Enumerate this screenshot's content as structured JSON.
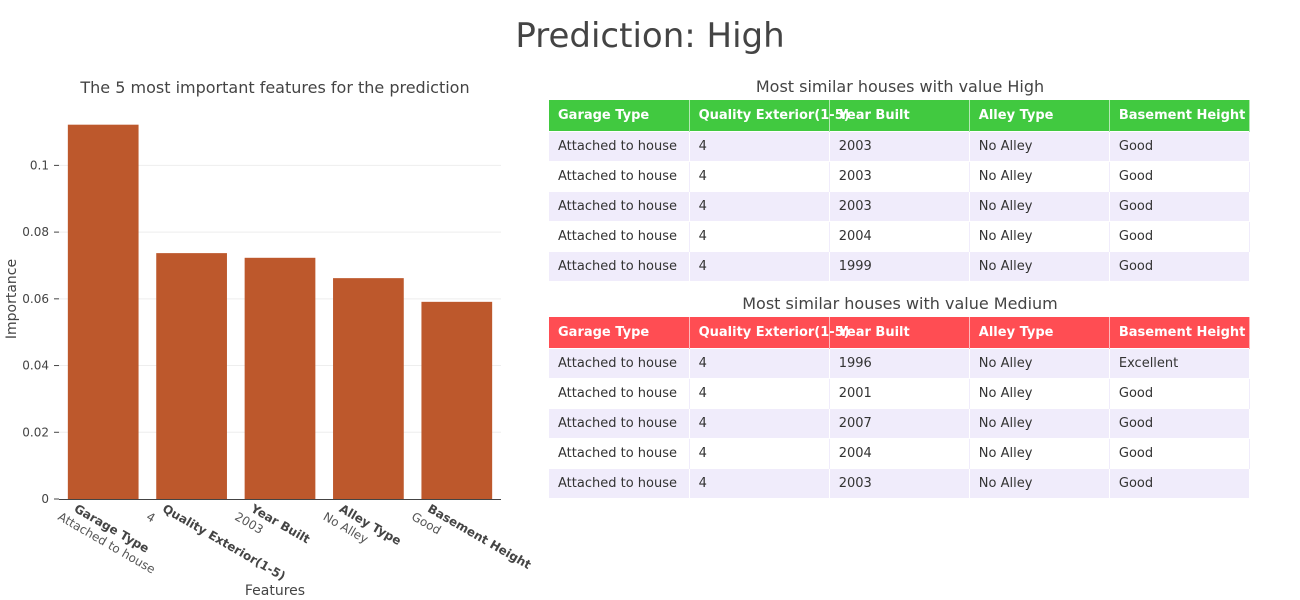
{
  "title": "Prediction: High",
  "chart_data": {
    "type": "bar",
    "title": "The 5 most important features for the prediction",
    "xlabel": "Features",
    "ylabel": "Importance",
    "categories": [
      "Garage Type",
      "Quality Exterior(1-5)",
      "Year Built",
      "Alley Type",
      "Basement Height"
    ],
    "category_values": [
      "Attached to house",
      "4",
      "2003",
      "No Alley",
      "Good"
    ],
    "values": [
      0.1122,
      0.0737,
      0.0723,
      0.0662,
      0.0591
    ],
    "ylim": [
      0,
      0.1175
    ],
    "yticks": [
      0,
      0.02,
      0.04,
      0.06,
      0.08,
      0.1
    ],
    "ytick_labels": [
      "0",
      "0.02",
      "0.04",
      "0.06",
      "0.08",
      "0.1"
    ],
    "bar_color": "#bd582c",
    "grid": true
  },
  "tables": [
    {
      "title": "Most similar houses with value High",
      "header_color": "#41c940",
      "columns": [
        "Garage Type",
        "Quality Exterior(1-5)",
        "Year Built",
        "Alley Type",
        "Basement Height"
      ],
      "rows": [
        [
          "Attached to house",
          "4",
          "2003",
          "No Alley",
          "Good"
        ],
        [
          "Attached to house",
          "4",
          "2003",
          "No Alley",
          "Good"
        ],
        [
          "Attached to house",
          "4",
          "2003",
          "No Alley",
          "Good"
        ],
        [
          "Attached to house",
          "4",
          "2004",
          "No Alley",
          "Good"
        ],
        [
          "Attached to house",
          "4",
          "1999",
          "No Alley",
          "Good"
        ]
      ]
    },
    {
      "title": "Most similar houses with value Medium",
      "header_color": "#ff4d53",
      "columns": [
        "Garage Type",
        "Quality Exterior(1-5)",
        "Year Built",
        "Alley Type",
        "Basement Height"
      ],
      "rows": [
        [
          "Attached to house",
          "4",
          "1996",
          "No Alley",
          "Excellent"
        ],
        [
          "Attached to house",
          "4",
          "2001",
          "No Alley",
          "Good"
        ],
        [
          "Attached to house",
          "4",
          "2007",
          "No Alley",
          "Good"
        ],
        [
          "Attached to house",
          "4",
          "2004",
          "No Alley",
          "Good"
        ],
        [
          "Attached to house",
          "4",
          "2003",
          "No Alley",
          "Good"
        ]
      ]
    }
  ]
}
